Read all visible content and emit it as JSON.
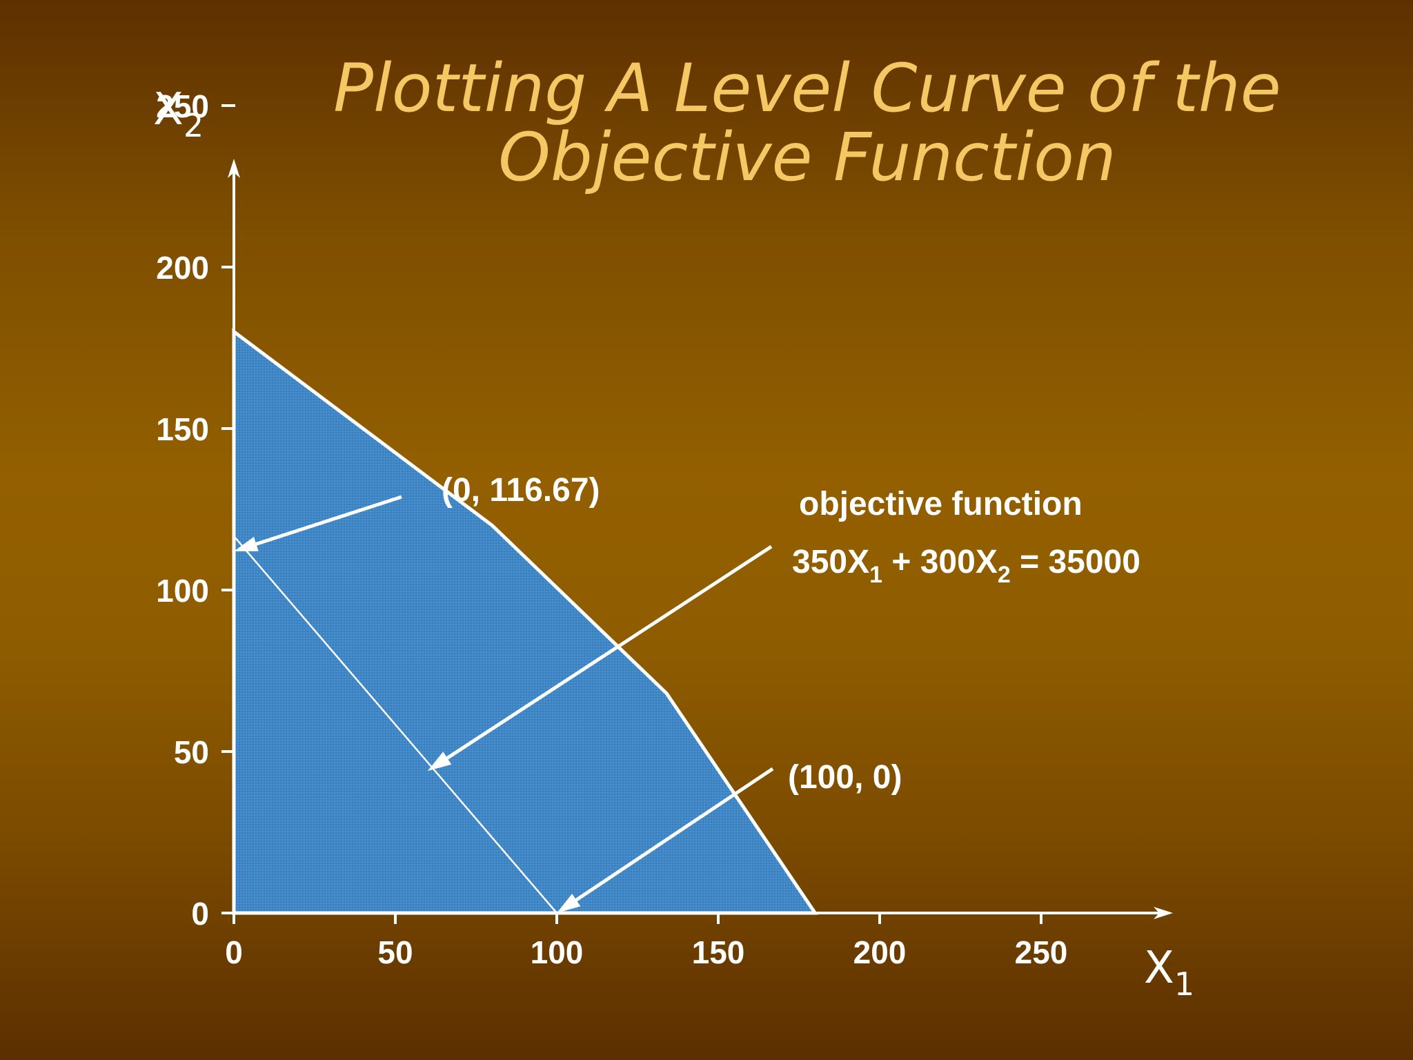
{
  "title_line1": "Plotting A Level Curve of the",
  "title_line2": "Objective Function",
  "chart_data": {
    "type": "line",
    "title": "Plotting A Level Curve of the Objective Function",
    "xlabel": "X",
    "xlabel_sub": "1",
    "ylabel": "X",
    "ylabel_sub": "2",
    "xlim": [
      0,
      290
    ],
    "ylim": [
      0,
      290
    ],
    "x_ticks": [
      0,
      50,
      100,
      150,
      200,
      250
    ],
    "y_ticks": [
      0,
      50,
      100,
      150,
      200,
      250
    ],
    "grid": false,
    "feasible_region": [
      [
        0,
        0
      ],
      [
        0,
        180
      ],
      [
        80,
        120
      ],
      [
        134,
        68
      ],
      [
        180,
        0
      ]
    ],
    "level_curve": [
      [
        0,
        116.67
      ],
      [
        100,
        0
      ]
    ],
    "colors": {
      "region_fill": "#3f87c6",
      "title": "#f6c864",
      "lines": "#ffffff"
    },
    "annotations": [
      {
        "id": "p1",
        "text": "(0, 116.67)",
        "target": [
          0,
          112
        ]
      },
      {
        "id": "obj",
        "line1": "objective function",
        "eq": {
          "a": "350X",
          "a_sub": "1",
          "op": " + 300X",
          "b_sub": "2",
          "rhs": " = 35000"
        },
        "target": [
          60,
          44
        ]
      },
      {
        "id": "p2",
        "text": "(100, 0)",
        "target": [
          100,
          0
        ]
      }
    ]
  }
}
